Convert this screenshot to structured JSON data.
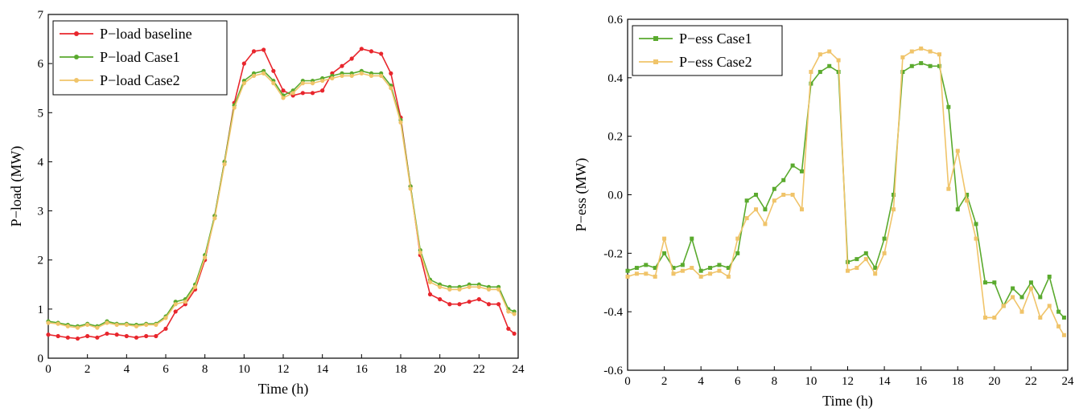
{
  "colors": {
    "baseline": "#e8262d",
    "case1": "#5aaa2e",
    "case2": "#f0c46a",
    "axis": "#000000"
  },
  "chart_data": [
    {
      "type": "line",
      "title": "",
      "xlabel": "Time (h)",
      "ylabel": "P−load (MW)",
      "xlim": [
        0,
        24
      ],
      "ylim": [
        0,
        7
      ],
      "xticks": [
        "0",
        "2",
        "4",
        "6",
        "8",
        "10",
        "12",
        "14",
        "16",
        "18",
        "20",
        "22",
        "24"
      ],
      "yticks": [
        "0",
        "1",
        "2",
        "3",
        "4",
        "5",
        "6",
        "7"
      ],
      "legend": "top-left",
      "grid": false,
      "series": [
        {
          "name": "P−load baseline",
          "color": "#e8262d",
          "marker": "circle",
          "x": [
            0,
            0.5,
            1,
            1.5,
            2,
            2.5,
            3,
            3.5,
            4,
            4.5,
            5,
            5.5,
            6,
            6.5,
            7,
            7.5,
            8,
            8.5,
            9,
            9.5,
            10,
            10.5,
            11,
            11.5,
            12,
            12.5,
            13,
            13.5,
            14,
            14.5,
            15,
            15.5,
            16,
            16.5,
            17,
            17.5,
            18,
            18.5,
            19,
            19.5,
            20,
            20.5,
            21,
            21.5,
            22,
            22.5,
            23,
            23.5,
            23.8
          ],
          "y": [
            0.48,
            0.45,
            0.42,
            0.4,
            0.45,
            0.42,
            0.5,
            0.48,
            0.45,
            0.42,
            0.45,
            0.45,
            0.6,
            0.95,
            1.1,
            1.4,
            2.0,
            2.9,
            4.0,
            5.2,
            6.0,
            6.25,
            6.28,
            5.85,
            5.45,
            5.35,
            5.4,
            5.4,
            5.45,
            5.8,
            5.95,
            6.1,
            6.3,
            6.25,
            6.2,
            5.8,
            4.9,
            3.5,
            2.1,
            1.3,
            1.2,
            1.1,
            1.1,
            1.15,
            1.2,
            1.1,
            1.1,
            0.6,
            0.5
          ]
        },
        {
          "name": "P−load Case1",
          "color": "#5aaa2e",
          "marker": "circle",
          "x": [
            0,
            0.5,
            1,
            1.5,
            2,
            2.5,
            3,
            3.5,
            4,
            4.5,
            5,
            5.5,
            6,
            6.5,
            7,
            7.5,
            8,
            8.5,
            9,
            9.5,
            10,
            10.5,
            11,
            11.5,
            12,
            12.5,
            13,
            13.5,
            14,
            14.5,
            15,
            15.5,
            16,
            16.5,
            17,
            17.5,
            18,
            18.5,
            19,
            19.5,
            20,
            20.5,
            21,
            21.5,
            22,
            22.5,
            23,
            23.5,
            23.8
          ],
          "y": [
            0.75,
            0.72,
            0.68,
            0.65,
            0.7,
            0.65,
            0.75,
            0.7,
            0.7,
            0.68,
            0.7,
            0.7,
            0.85,
            1.15,
            1.2,
            1.5,
            2.1,
            2.9,
            4.0,
            5.15,
            5.65,
            5.8,
            5.85,
            5.65,
            5.35,
            5.45,
            5.65,
            5.65,
            5.7,
            5.75,
            5.8,
            5.8,
            5.85,
            5.8,
            5.8,
            5.55,
            4.85,
            3.5,
            2.2,
            1.6,
            1.5,
            1.45,
            1.45,
            1.5,
            1.5,
            1.45,
            1.45,
            1.0,
            0.95
          ]
        },
        {
          "name": "P−load Case2",
          "color": "#f0c46a",
          "marker": "circle",
          "x": [
            0,
            0.5,
            1,
            1.5,
            2,
            2.5,
            3,
            3.5,
            4,
            4.5,
            5,
            5.5,
            6,
            6.5,
            7,
            7.5,
            8,
            8.5,
            9,
            9.5,
            10,
            10.5,
            11,
            11.5,
            12,
            12.5,
            13,
            13.5,
            14,
            14.5,
            15,
            15.5,
            16,
            16.5,
            17,
            17.5,
            18,
            18.5,
            19,
            19.5,
            20,
            20.5,
            21,
            21.5,
            22,
            22.5,
            23,
            23.5,
            23.8
          ],
          "y": [
            0.72,
            0.7,
            0.65,
            0.62,
            0.68,
            0.62,
            0.72,
            0.68,
            0.68,
            0.65,
            0.68,
            0.68,
            0.82,
            1.1,
            1.15,
            1.45,
            2.05,
            2.85,
            3.95,
            5.1,
            5.6,
            5.75,
            5.8,
            5.6,
            5.3,
            5.4,
            5.6,
            5.6,
            5.65,
            5.7,
            5.75,
            5.75,
            5.8,
            5.75,
            5.75,
            5.5,
            4.8,
            3.45,
            2.15,
            1.55,
            1.45,
            1.4,
            1.4,
            1.45,
            1.45,
            1.4,
            1.4,
            0.95,
            0.9
          ]
        }
      ]
    },
    {
      "type": "line",
      "title": "",
      "xlabel": "Time (h)",
      "ylabel": "P−ess (MW)",
      "xlim": [
        0,
        24
      ],
      "ylim": [
        -0.6,
        0.6
      ],
      "xticks": [
        "0",
        "2",
        "4",
        "6",
        "8",
        "10",
        "12",
        "14",
        "16",
        "18",
        "20",
        "22",
        "24"
      ],
      "yticks": [
        "0.6",
        "0.4",
        "0.2",
        "0.0",
        "-0.2",
        "-0.4",
        "-0.6"
      ],
      "legend": "top-left",
      "grid": false,
      "series": [
        {
          "name": "P−ess Case1",
          "color": "#5aaa2e",
          "marker": "square",
          "x": [
            0,
            0.5,
            1,
            1.5,
            2,
            2.5,
            3,
            3.5,
            4,
            4.5,
            5,
            5.5,
            6,
            6.5,
            7,
            7.5,
            8,
            8.5,
            9,
            9.5,
            10,
            10.5,
            11,
            11.5,
            12,
            12.5,
            13,
            13.5,
            14,
            14.5,
            15,
            15.5,
            16,
            16.5,
            17,
            17.5,
            18,
            18.5,
            19,
            19.5,
            20,
            20.5,
            21,
            21.5,
            22,
            22.5,
            23,
            23.5,
            23.8
          ],
          "y": [
            -0.26,
            -0.25,
            -0.24,
            -0.25,
            -0.2,
            -0.25,
            -0.24,
            -0.15,
            -0.26,
            -0.25,
            -0.24,
            -0.25,
            -0.2,
            -0.02,
            0.0,
            -0.05,
            0.02,
            0.05,
            0.1,
            0.08,
            0.38,
            0.42,
            0.44,
            0.42,
            -0.23,
            -0.22,
            -0.2,
            -0.25,
            -0.15,
            0.0,
            0.42,
            0.44,
            0.45,
            0.44,
            0.44,
            0.3,
            -0.05,
            0.0,
            -0.1,
            -0.3,
            -0.3,
            -0.38,
            -0.32,
            -0.35,
            -0.3,
            -0.35,
            -0.28,
            -0.4,
            -0.42
          ]
        },
        {
          "name": "P−ess Case2",
          "color": "#f0c46a",
          "marker": "square",
          "x": [
            0,
            0.5,
            1,
            1.5,
            2,
            2.5,
            3,
            3.5,
            4,
            4.5,
            5,
            5.5,
            6,
            6.5,
            7,
            7.5,
            8,
            8.5,
            9,
            9.5,
            10,
            10.5,
            11,
            11.5,
            12,
            12.5,
            13,
            13.5,
            14,
            14.5,
            15,
            15.5,
            16,
            16.5,
            17,
            17.5,
            18,
            18.5,
            19,
            19.5,
            20,
            20.5,
            21,
            21.5,
            22,
            22.5,
            23,
            23.5,
            23.8
          ],
          "y": [
            -0.28,
            -0.27,
            -0.27,
            -0.28,
            -0.15,
            -0.27,
            -0.26,
            -0.25,
            -0.28,
            -0.27,
            -0.26,
            -0.28,
            -0.15,
            -0.08,
            -0.05,
            -0.1,
            -0.02,
            0.0,
            0.0,
            -0.05,
            0.42,
            0.48,
            0.49,
            0.46,
            -0.26,
            -0.25,
            -0.22,
            -0.27,
            -0.2,
            -0.05,
            0.47,
            0.49,
            0.5,
            0.49,
            0.48,
            0.02,
            0.15,
            -0.02,
            -0.15,
            -0.42,
            -0.42,
            -0.38,
            -0.35,
            -0.4,
            -0.32,
            -0.42,
            -0.38,
            -0.45,
            -0.48
          ]
        }
      ]
    }
  ]
}
